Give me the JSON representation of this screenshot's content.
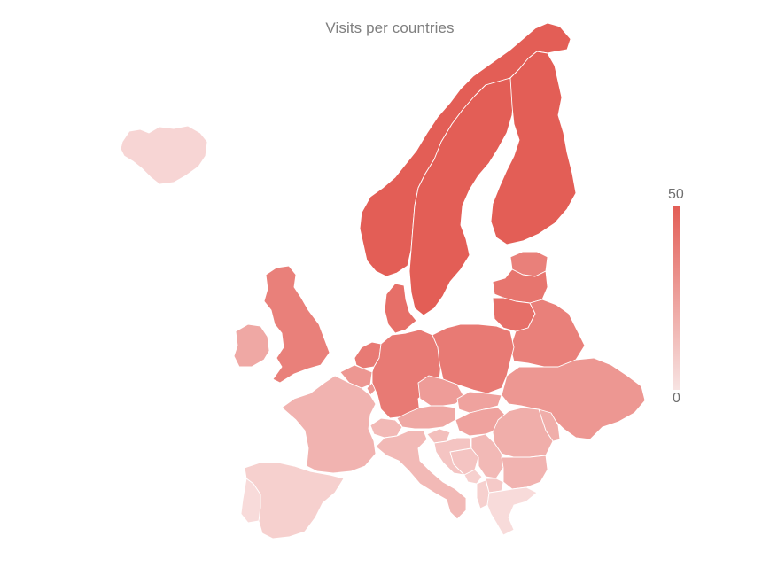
{
  "chart": {
    "title": "Visits per countries"
  },
  "legend": {
    "max_label": "50",
    "min_label": "0",
    "min_value": 0,
    "max_value": 50,
    "color_low": "#fbecec",
    "color_high": "#e35e56"
  },
  "chart_data": {
    "type": "choropleth",
    "title": "Visits per countries",
    "value_range": [
      0,
      50
    ],
    "regions": [
      {
        "id": "IS",
        "value": 8
      },
      {
        "id": "NO",
        "value": 50
      },
      {
        "id": "SE",
        "value": 50
      },
      {
        "id": "FI",
        "value": 50
      },
      {
        "id": "EE",
        "value": 38
      },
      {
        "id": "LV",
        "value": 42
      },
      {
        "id": "LT",
        "value": 44
      },
      {
        "id": "BY",
        "value": 38
      },
      {
        "id": "GB",
        "value": 38
      },
      {
        "id": "IE",
        "value": 24
      },
      {
        "id": "DK",
        "value": 44
      },
      {
        "id": "NL",
        "value": 40
      },
      {
        "id": "BE",
        "value": 30
      },
      {
        "id": "LU",
        "value": 30
      },
      {
        "id": "DE",
        "value": 40
      },
      {
        "id": "PL",
        "value": 40
      },
      {
        "id": "CZ",
        "value": 28
      },
      {
        "id": "SK",
        "value": 26
      },
      {
        "id": "AT",
        "value": 24
      },
      {
        "id": "CH",
        "value": 18
      },
      {
        "id": "FR",
        "value": 20
      },
      {
        "id": "ES",
        "value": 10
      },
      {
        "id": "PT",
        "value": 6
      },
      {
        "id": "IT",
        "value": 18
      },
      {
        "id": "HU",
        "value": 26
      },
      {
        "id": "UA",
        "value": 30
      },
      {
        "id": "MD",
        "value": 22
      },
      {
        "id": "RO",
        "value": 22
      },
      {
        "id": "SI",
        "value": 16
      },
      {
        "id": "HR",
        "value": 14
      },
      {
        "id": "BA",
        "value": 14
      },
      {
        "id": "RS",
        "value": 18
      },
      {
        "id": "ME",
        "value": 10
      },
      {
        "id": "AL",
        "value": 10
      },
      {
        "id": "MK",
        "value": 12
      },
      {
        "id": "BG",
        "value": 20
      },
      {
        "id": "GR",
        "value": 6
      }
    ]
  }
}
